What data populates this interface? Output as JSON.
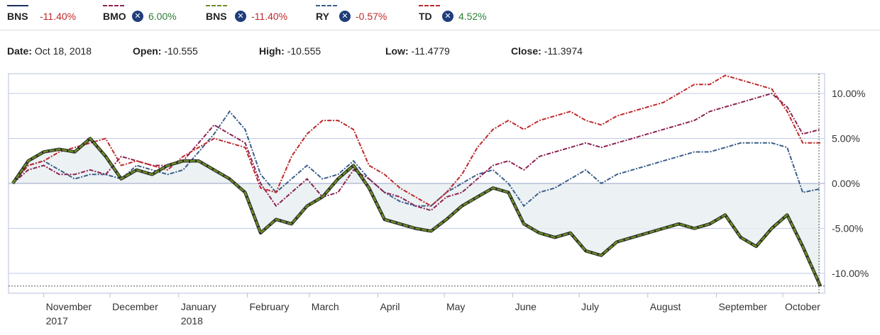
{
  "legend": [
    {
      "name": "BNS",
      "value": "-11.40%",
      "closable": false,
      "color": "#1a2f5a",
      "value_color": "#c0282a"
    },
    {
      "name": "BMO",
      "value": "6.00%",
      "closable": true,
      "color": "#8b2252",
      "value_color": "#2e7d32"
    },
    {
      "name": "BNS",
      "value": "-11.40%",
      "closable": true,
      "color": "#6b8e23",
      "value_color": "#c0282a"
    },
    {
      "name": "RY",
      "value": "-0.57%",
      "closable": true,
      "color": "#3a5f8a",
      "value_color": "#c0282a"
    },
    {
      "name": "TD",
      "value": "4.52%",
      "closable": true,
      "color": "#c0282a",
      "value_color": "#2e7d32"
    }
  ],
  "close_icon": "close-circle-icon",
  "ohlc": {
    "date_label": "Date:",
    "date": "Oct 18, 2018",
    "open_label": "Open:",
    "open": "-10.555",
    "high_label": "High:",
    "high": "-10.555",
    "low_label": "Low:",
    "low": "-11.4779",
    "close_label": "Close:",
    "close": "-11.3974"
  },
  "chart_data": {
    "type": "line",
    "x": [
      "Oct 18, 2017",
      "Oct 25, 2017",
      "Nov 1, 2017",
      "Nov 8, 2017",
      "Nov 15, 2017",
      "Nov 22, 2017",
      "Nov 29, 2017",
      "Dec 6, 2017",
      "Dec 13, 2017",
      "Dec 20, 2017",
      "Dec 27, 2017",
      "Jan 3, 2018",
      "Jan 10, 2018",
      "Jan 17, 2018",
      "Jan 24, 2018",
      "Jan 31, 2018",
      "Feb 7, 2018",
      "Feb 14, 2018",
      "Feb 21, 2018",
      "Feb 28, 2018",
      "Mar 7, 2018",
      "Mar 14, 2018",
      "Mar 21, 2018",
      "Mar 28, 2018",
      "Apr 4, 2018",
      "Apr 11, 2018",
      "Apr 18, 2018",
      "Apr 25, 2018",
      "May 2, 2018",
      "May 9, 2018",
      "May 16, 2018",
      "May 23, 2018",
      "May 30, 2018",
      "Jun 6, 2018",
      "Jun 13, 2018",
      "Jun 20, 2018",
      "Jun 27, 2018",
      "Jul 4, 2018",
      "Jul 11, 2018",
      "Jul 18, 2018",
      "Jul 25, 2018",
      "Aug 1, 2018",
      "Aug 8, 2018",
      "Aug 15, 2018",
      "Aug 22, 2018",
      "Aug 29, 2018",
      "Sep 5, 2018",
      "Sep 12, 2018",
      "Sep 19, 2018",
      "Sep 26, 2018",
      "Oct 3, 2018",
      "Oct 10, 2018",
      "Oct 18, 2018"
    ],
    "x_ticks": [
      {
        "date": "Nov 1, 2017",
        "label": "November",
        "sub": "2017"
      },
      {
        "date": "Dec 1, 2017",
        "label": "December",
        "sub": ""
      },
      {
        "date": "Jan 1, 2018",
        "label": "January",
        "sub": "2018"
      },
      {
        "date": "Feb 1, 2018",
        "label": "February",
        "sub": ""
      },
      {
        "date": "Mar 1, 2018",
        "label": "March",
        "sub": ""
      },
      {
        "date": "Apr 1, 2018",
        "label": "April",
        "sub": ""
      },
      {
        "date": "May 1, 2018",
        "label": "May",
        "sub": ""
      },
      {
        "date": "Jun 1, 2018",
        "label": "June",
        "sub": ""
      },
      {
        "date": "Jul 1, 2018",
        "label": "July",
        "sub": ""
      },
      {
        "date": "Aug 1, 2018",
        "label": "August",
        "sub": ""
      },
      {
        "date": "Sep 1, 2018",
        "label": "September",
        "sub": ""
      },
      {
        "date": "Oct 1, 2018",
        "label": "October",
        "sub": ""
      }
    ],
    "y_ticks": [
      10,
      5,
      0,
      -5,
      -10
    ],
    "y_tick_labels": [
      "10.00%",
      "5.00%",
      "0.00%",
      "-5.00%",
      "-10.00%"
    ],
    "ylim": [
      -12.2,
      12.2
    ],
    "grid": true,
    "baseline_series": "BNS",
    "crosshair_value": -11.4,
    "series": [
      {
        "name": "BNS",
        "color": "#6b8e23",
        "outline": "#2a2a2a",
        "values": [
          0,
          2.5,
          3.5,
          3.8,
          3.5,
          5.0,
          3.0,
          0.5,
          1.5,
          1.0,
          2.0,
          2.5,
          2.5,
          1.5,
          0.5,
          -1.0,
          -5.5,
          -4.0,
          -4.5,
          -2.5,
          -1.5,
          0.5,
          2.0,
          -0.5,
          -4.0,
          -4.5,
          -5.0,
          -5.3,
          -4.0,
          -2.5,
          -1.5,
          -0.5,
          -1.0,
          -4.5,
          -5.5,
          -6.0,
          -5.5,
          -7.5,
          -8.0,
          -6.5,
          -6.0,
          -5.5,
          -5.0,
          -4.5,
          -5.0,
          -4.5,
          -3.5,
          -6.0,
          -7.0,
          -5.0,
          -3.5,
          -7.0,
          -11.4
        ]
      },
      {
        "name": "BMO",
        "values": [
          0,
          1.5,
          2.0,
          1.0,
          1.0,
          1.5,
          1.0,
          3.0,
          2.5,
          2.0,
          2.0,
          2.5,
          4.5,
          6.5,
          5.5,
          4.5,
          0.0,
          -2.5,
          -1.0,
          0.5,
          -1.5,
          -1.0,
          1.5,
          0.5,
          -1.0,
          -1.5,
          -2.5,
          -3.0,
          -1.5,
          -1.0,
          0.5,
          2.0,
          2.5,
          1.5,
          3.0,
          3.5,
          4.0,
          4.5,
          4.0,
          4.5,
          5.0,
          5.5,
          6.0,
          6.5,
          7.0,
          8.0,
          8.5,
          9.0,
          9.5,
          10.0,
          8.5,
          5.5,
          6.0
        ]
      },
      {
        "name": "RY",
        "values": [
          0,
          2.0,
          2.5,
          1.5,
          0.5,
          1.0,
          1.0,
          0.5,
          2.0,
          1.5,
          1.0,
          1.5,
          3.5,
          5.5,
          8.0,
          6.0,
          1.0,
          -1.0,
          0.5,
          2.0,
          0.5,
          1.0,
          2.5,
          0.5,
          -1.0,
          -2.0,
          -2.5,
          -2.5,
          -1.0,
          0.0,
          1.0,
          1.5,
          0.0,
          -2.5,
          -1.0,
          -0.5,
          0.5,
          1.5,
          0.0,
          1.0,
          1.5,
          2.0,
          2.5,
          3.0,
          3.5,
          3.5,
          4.0,
          4.5,
          4.5,
          4.5,
          4.0,
          -1.0,
          -0.6
        ]
      },
      {
        "name": "TD",
        "values": [
          0,
          2.0,
          2.5,
          3.5,
          4.0,
          4.5,
          5.0,
          2.0,
          2.5,
          2.0,
          1.5,
          3.0,
          4.0,
          5.0,
          4.5,
          4.0,
          -0.5,
          -1.0,
          3.0,
          5.5,
          7.0,
          7.0,
          6.0,
          2.0,
          1.0,
          -0.5,
          -1.5,
          -2.5,
          -1.0,
          1.0,
          4.0,
          6.0,
          7.0,
          6.0,
          7.0,
          7.5,
          8.0,
          7.0,
          6.5,
          7.5,
          8.0,
          8.5,
          9.0,
          10.0,
          11.0,
          11.0,
          12.0,
          11.5,
          11.0,
          10.5,
          8.0,
          4.5,
          4.5
        ]
      }
    ]
  }
}
